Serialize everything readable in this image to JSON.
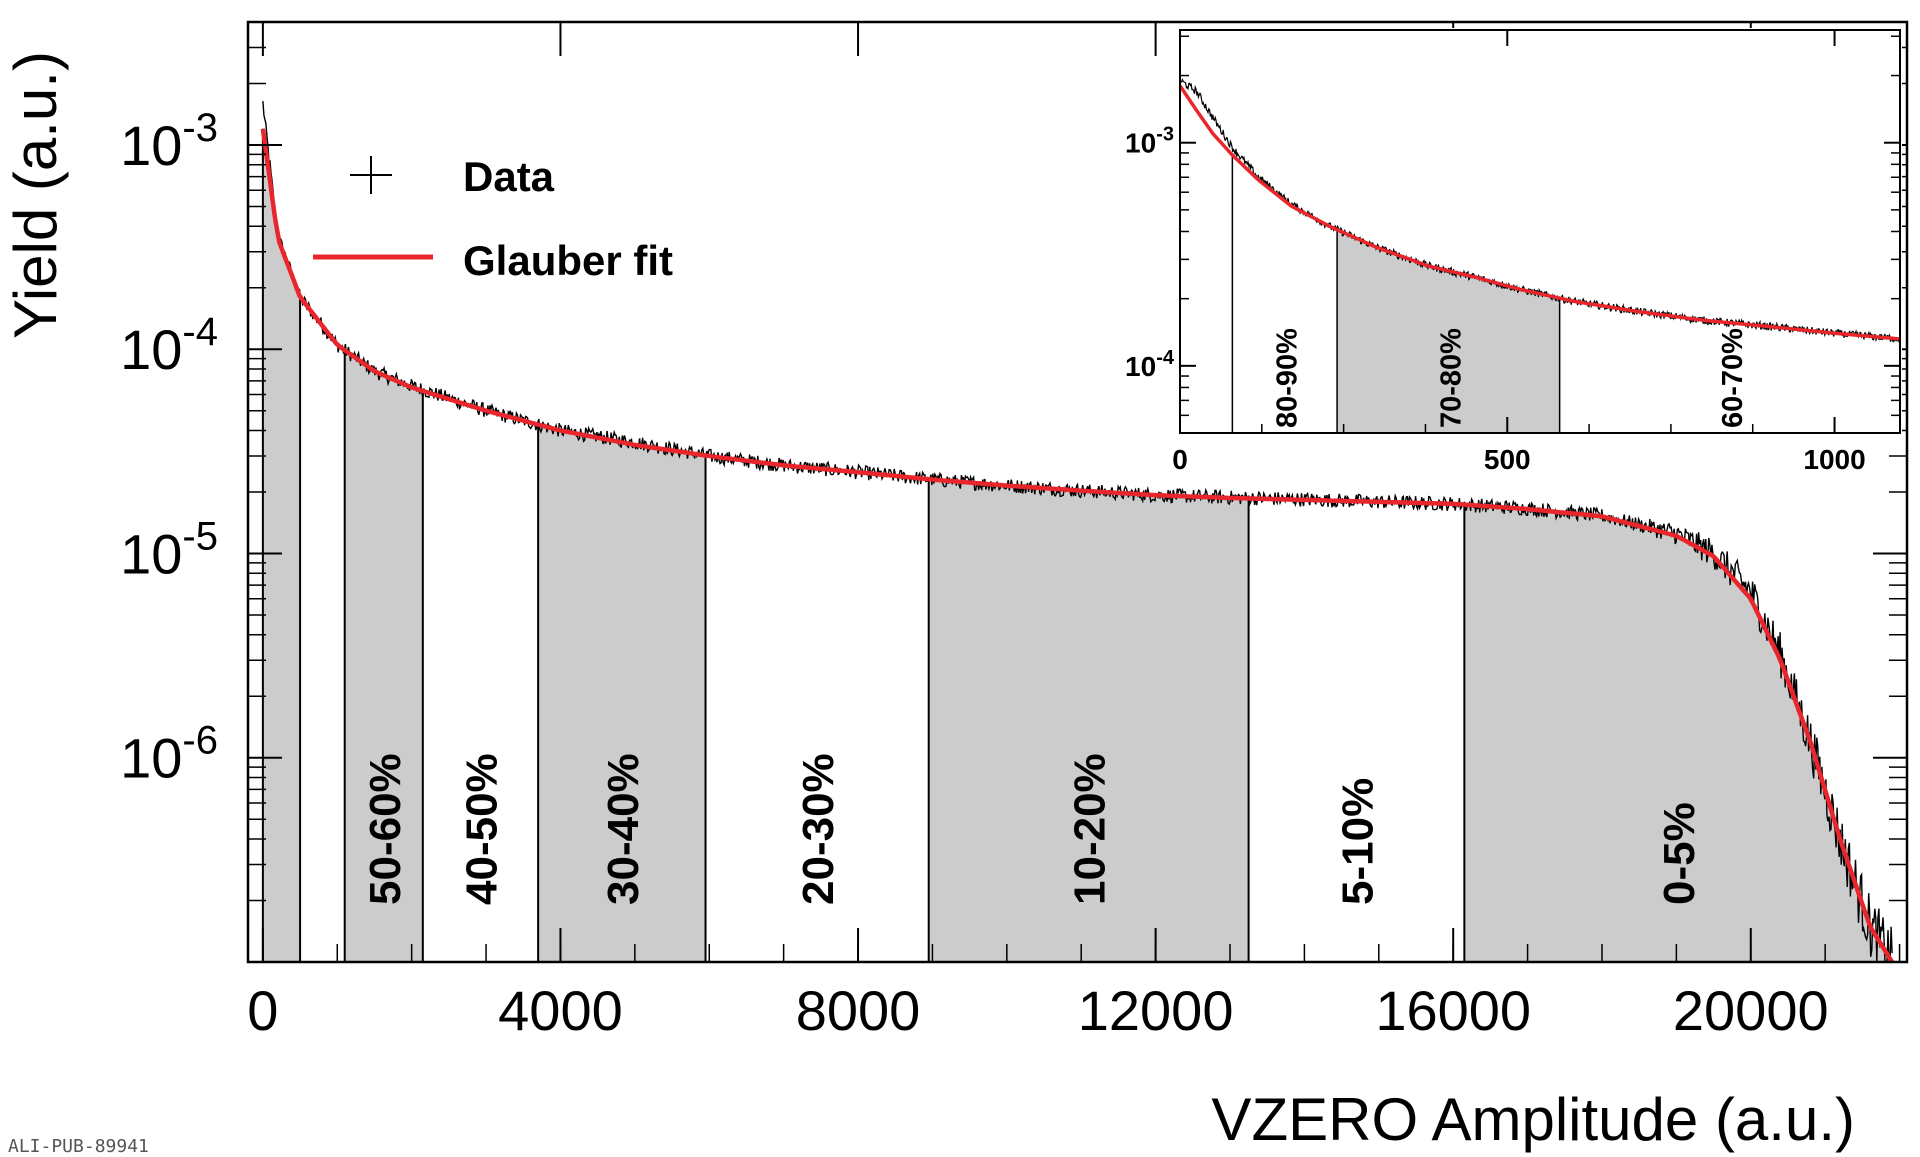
{
  "chart_data": [
    {
      "type": "line",
      "title": "",
      "xlabel": "VZERO Amplitude (a.u.)",
      "ylabel": "Yield (a.u.)",
      "xlim": [
        -200,
        22100
      ],
      "ylim": [
        1e-07,
        0.004
      ],
      "y_scale": "log",
      "x_ticks": [
        0,
        4000,
        8000,
        12000,
        16000,
        20000
      ],
      "x_tick_labels": [
        "0",
        "4000",
        "8000",
        "12000",
        "16000",
        "20000"
      ],
      "y_ticks": [
        0.001,
        0.0001,
        1e-05,
        1e-06
      ],
      "y_tick_labels": [
        {
          "base": "10",
          "exp": "-3"
        },
        {
          "base": "10",
          "exp": "-4"
        },
        {
          "base": "10",
          "exp": "-5"
        },
        {
          "base": "10",
          "exp": "-6"
        }
      ],
      "legend": {
        "placement": "top-left",
        "entries": [
          {
            "label": "Data",
            "marker": "cross",
            "color": "#000000"
          },
          {
            "label": "Glauber fit",
            "marker": "line",
            "color": "#e8262b"
          }
        ]
      },
      "series": [
        {
          "name": "Glauber fit",
          "color": "#e8262b",
          "x": [
            0,
            200,
            500,
            1000,
            1500,
            2000,
            3000,
            4000,
            5000,
            6000,
            7000,
            8000,
            9000,
            10000,
            11000,
            12000,
            13000,
            14000,
            15000,
            16000,
            17000,
            18000,
            19000,
            19500,
            20000,
            20400,
            20800,
            21200,
            21600,
            21900
          ],
          "values": [
            0.0012,
            0.00035,
            0.00018,
            0.000105,
            7.8e-05,
            6.5e-05,
            5e-05,
            4e-05,
            3.4e-05,
            3e-05,
            2.7e-05,
            2.5e-05,
            2.3e-05,
            2.15e-05,
            2.03e-05,
            1.93e-05,
            1.87e-05,
            1.83e-05,
            1.79e-05,
            1.75e-05,
            1.65e-05,
            1.52e-05,
            1.22e-05,
            9.7e-06,
            6e-06,
            3e-06,
            1.2e-06,
            4e-07,
            1.5e-07,
            1e-07
          ]
        },
        {
          "name": "Data",
          "color": "#000000",
          "x": [
            0,
            200,
            500,
            1000,
            1500,
            2000,
            3000,
            4000,
            5000,
            6000,
            7000,
            8000,
            9000,
            10000,
            11000,
            12000,
            13000,
            14000,
            15000,
            16000,
            17000,
            18000,
            19000,
            19500,
            20000,
            20400,
            20800,
            21200,
            21600,
            21900
          ],
          "values": [
            0.0016,
            0.00036,
            0.00018,
            0.000105,
            7.8e-05,
            6.6e-05,
            5e-05,
            4e-05,
            3.5e-05,
            3e-05,
            2.7e-05,
            2.5e-05,
            2.3e-05,
            2.15e-05,
            2.03e-05,
            1.93e-05,
            1.88e-05,
            1.84e-05,
            1.79e-05,
            1.75e-05,
            1.66e-05,
            1.53e-05,
            1.25e-05,
            1e-05,
            6.5e-06,
            3.2e-06,
            1.2e-06,
            4e-07,
            1.5e-07,
            1e-07
          ]
        }
      ],
      "centrality_bands": [
        {
          "label": "50-60%",
          "x_start": 1100,
          "x_end": 2150,
          "shaded": true
        },
        {
          "label": "40-50%",
          "x_start": 2150,
          "x_end": 3700,
          "shaded": false
        },
        {
          "label": "30-40%",
          "x_start": 3700,
          "x_end": 5950,
          "shaded": true
        },
        {
          "label": "20-30%",
          "x_start": 5950,
          "x_end": 8950,
          "shaded": false
        },
        {
          "label": "10-20%",
          "x_start": 8950,
          "x_end": 13250,
          "shaded": true
        },
        {
          "label": "5-10%",
          "x_start": 13250,
          "x_end": 16150,
          "shaded": false
        },
        {
          "label": "0-5%",
          "x_start": 16150,
          "x_end": 21900,
          "shaded": true
        }
      ],
      "left_bands": [
        {
          "x_start": 0,
          "x_end": 500,
          "shaded": true
        },
        {
          "x_start": 500,
          "x_end": 1100,
          "shaded": false
        }
      ]
    },
    {
      "type": "line",
      "title": "",
      "xlabel": "",
      "ylabel": "",
      "xlim": [
        0,
        1100
      ],
      "ylim": [
        5e-05,
        0.0032
      ],
      "y_scale": "log",
      "x_ticks": [
        0,
        500,
        1000
      ],
      "x_tick_labels": [
        "0",
        "500",
        "1000"
      ],
      "y_ticks": [
        0.001,
        0.0001
      ],
      "y_tick_labels": [
        {
          "base": "10",
          "exp": "-3"
        },
        {
          "base": "10",
          "exp": "-4"
        }
      ],
      "series": [
        {
          "name": "Glauber fit",
          "color": "#e8262b",
          "x": [
            0,
            25,
            50,
            80,
            120,
            170,
            230,
            300,
            380,
            450,
            520,
            600,
            700,
            800,
            900,
            1000,
            1100
          ],
          "values": [
            0.0018,
            0.0014,
            0.0011,
            0.00088,
            0.00068,
            0.00052,
            0.00042,
            0.00034,
            0.00028,
            0.00025,
            0.00022,
            0.000195,
            0.000175,
            0.00016,
            0.00015,
            0.00014,
            0.000132
          ]
        },
        {
          "name": "Data",
          "color": "#000000",
          "x": [
            0,
            25,
            50,
            80,
            120,
            170,
            230,
            300,
            380,
            450,
            520,
            600,
            700,
            800,
            900,
            1000,
            1100
          ],
          "values": [
            0.0019,
            0.0017,
            0.0013,
            0.00095,
            0.0007,
            0.00053,
            0.00042,
            0.00034,
            0.00028,
            0.00025,
            0.00022,
            0.000195,
            0.000175,
            0.00016,
            0.00015,
            0.00014,
            0.000132
          ]
        }
      ],
      "centrality_bands": [
        {
          "label": "80-90%",
          "x_start": 80,
          "x_end": 240,
          "shaded": false
        },
        {
          "label": "70-80%",
          "x_start": 240,
          "x_end": 580,
          "shaded": true
        },
        {
          "label": "60-70%",
          "x_start": 580,
          "x_end": 1100,
          "shaded": false
        }
      ]
    }
  ],
  "credit": "ALI-PUB-89941",
  "colors": {
    "band_fill": "#cccccc",
    "fit": "#e8262b",
    "data": "#000000"
  }
}
